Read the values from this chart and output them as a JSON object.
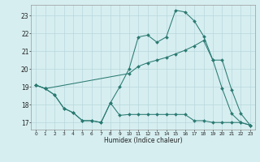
{
  "xlabel": "Humidex (Indice chaleur)",
  "xlim": [
    -0.5,
    23.5
  ],
  "ylim": [
    16.6,
    23.6
  ],
  "yticks": [
    17,
    18,
    19,
    20,
    21,
    22,
    23
  ],
  "xticks": [
    0,
    1,
    2,
    3,
    4,
    5,
    6,
    7,
    8,
    9,
    10,
    11,
    12,
    13,
    14,
    15,
    16,
    17,
    18,
    19,
    20,
    21,
    22,
    23
  ],
  "background_color": "#d6eef0",
  "grid_color": "#b8d8dc",
  "line_color": "#2a7a72",
  "line1_x": [
    0,
    1,
    2,
    3,
    4,
    5,
    6,
    7,
    8,
    9,
    10,
    11,
    12,
    13,
    14,
    15,
    16,
    17,
    18,
    19,
    20,
    21,
    22,
    23
  ],
  "line1_y": [
    19.1,
    18.9,
    18.55,
    17.8,
    17.55,
    17.1,
    17.1,
    17.0,
    18.1,
    17.4,
    17.45,
    17.45,
    17.45,
    17.45,
    17.45,
    17.45,
    17.45,
    17.1,
    17.1,
    17.0,
    17.0,
    17.0,
    17.0,
    16.85
  ],
  "line2_x": [
    0,
    1,
    2,
    3,
    4,
    5,
    6,
    7,
    8,
    9,
    10,
    11,
    12,
    13,
    14,
    15,
    16,
    17,
    18,
    19,
    20,
    21,
    22,
    23
  ],
  "line2_y": [
    19.1,
    18.9,
    18.55,
    17.8,
    17.55,
    17.1,
    17.1,
    17.0,
    18.1,
    19.0,
    20.0,
    21.8,
    21.9,
    21.5,
    21.8,
    23.3,
    23.2,
    22.7,
    21.85,
    20.5,
    18.9,
    17.5,
    17.0,
    16.85
  ],
  "line3_x": [
    0,
    1,
    10,
    11,
    12,
    13,
    14,
    15,
    16,
    17,
    18,
    19,
    20,
    21,
    22,
    23
  ],
  "line3_y": [
    19.1,
    18.9,
    19.75,
    20.15,
    20.35,
    20.5,
    20.65,
    20.85,
    21.05,
    21.3,
    21.6,
    20.5,
    20.5,
    18.85,
    17.5,
    16.85
  ]
}
